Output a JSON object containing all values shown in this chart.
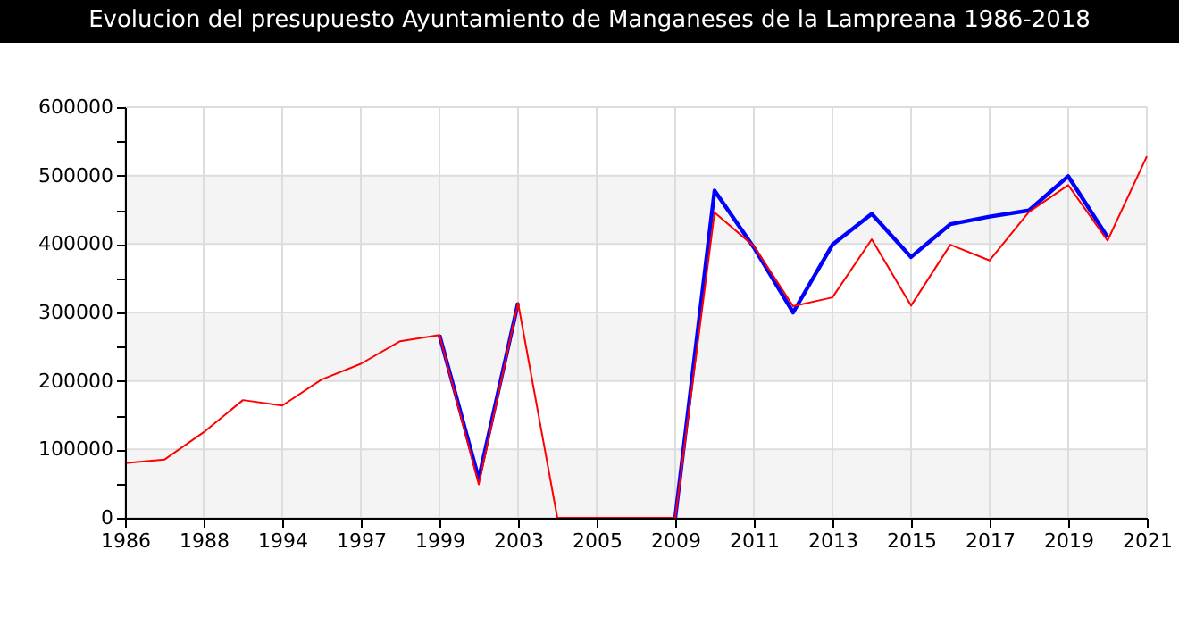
{
  "chart_data": {
    "type": "line",
    "title": "Evolucion del presupuesto Ayuntamiento de Manganeses de la Lampreana 1986-2018",
    "categories": [
      "1986",
      null,
      "1988",
      null,
      "1994",
      null,
      "1997",
      null,
      "1999",
      null,
      "2003",
      null,
      "2005",
      null,
      "2009",
      null,
      "2011",
      null,
      "2013",
      null,
      "2015",
      null,
      "2017",
      null,
      "2019",
      null,
      "2021"
    ],
    "series": [
      {
        "color": "#0000ff",
        "values": [
          null,
          null,
          null,
          null,
          null,
          null,
          null,
          null,
          267000,
          57000,
          314000,
          null,
          null,
          null,
          0,
          478000,
          395000,
          300000,
          399000,
          444000,
          381000,
          429000,
          440000,
          449000,
          499000,
          410000,
          null
        ]
      },
      {
        "color": "#ff0000",
        "values": [
          80000,
          85000,
          125000,
          172000,
          164000,
          202000,
          225000,
          258000,
          267000,
          49000,
          314000,
          0,
          0,
          0,
          0,
          446000,
          397000,
          309000,
          322000,
          407000,
          310000,
          399000,
          376000,
          447000,
          486000,
          405000,
          528000
        ]
      }
    ],
    "ylim": [
      0,
      600000
    ],
    "yticks": [
      0,
      {
        "value": 50000,
        "label": null
      },
      100000,
      {
        "value": 150000,
        "label": null
      },
      200000,
      {
        "value": 250000,
        "label": null
      },
      300000,
      {
        "value": 350000,
        "label": null
      },
      400000,
      {
        "value": 450000,
        "label": null
      },
      500000,
      {
        "value": 550000,
        "label": null
      },
      600000
    ],
    "bands": [
      {
        "axis": "y",
        "from": 0,
        "to": 100000,
        "color": "#f4f4f4"
      },
      {
        "axis": "y",
        "from": 200000,
        "to": 300000,
        "color": "#f4f4f4"
      },
      {
        "axis": "y",
        "from": 400000,
        "to": 500000,
        "color": "#f4f4f4"
      }
    ],
    "grid": true,
    "marker": "none",
    "line_style": "solid"
  }
}
